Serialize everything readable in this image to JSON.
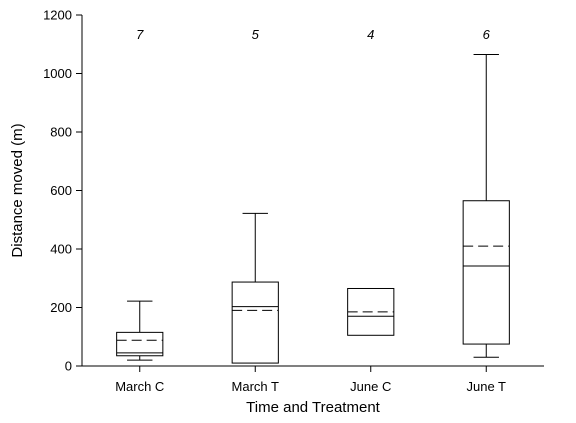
{
  "chart_data": {
    "type": "box",
    "title": "",
    "xlabel": "Time and Treatment",
    "ylabel": "Distance moved (m)",
    "ylim": [
      0,
      1200
    ],
    "yticks": [
      0,
      200,
      400,
      600,
      800,
      1000,
      1200
    ],
    "grid": false,
    "legend": "none",
    "groups": [
      {
        "category": "March C",
        "n": "7",
        "whisker_low": 20,
        "q1": 35,
        "median": 45,
        "mean": 88,
        "q3": 115,
        "whisker_high": 222
      },
      {
        "category": "March T",
        "n": "5",
        "whisker_low": 10,
        "q1": 10,
        "median": 203,
        "mean": 190,
        "q3": 287,
        "whisker_high": 522
      },
      {
        "category": "June C",
        "n": "4",
        "whisker_low": 105,
        "q1": 105,
        "median": 170,
        "mean": 185,
        "q3": 265,
        "whisker_high": 265
      },
      {
        "category": "June T",
        "n": "6",
        "whisker_low": 30,
        "q1": 75,
        "median": 342,
        "mean": 410,
        "q3": 565,
        "whisker_high": 1065
      }
    ]
  }
}
